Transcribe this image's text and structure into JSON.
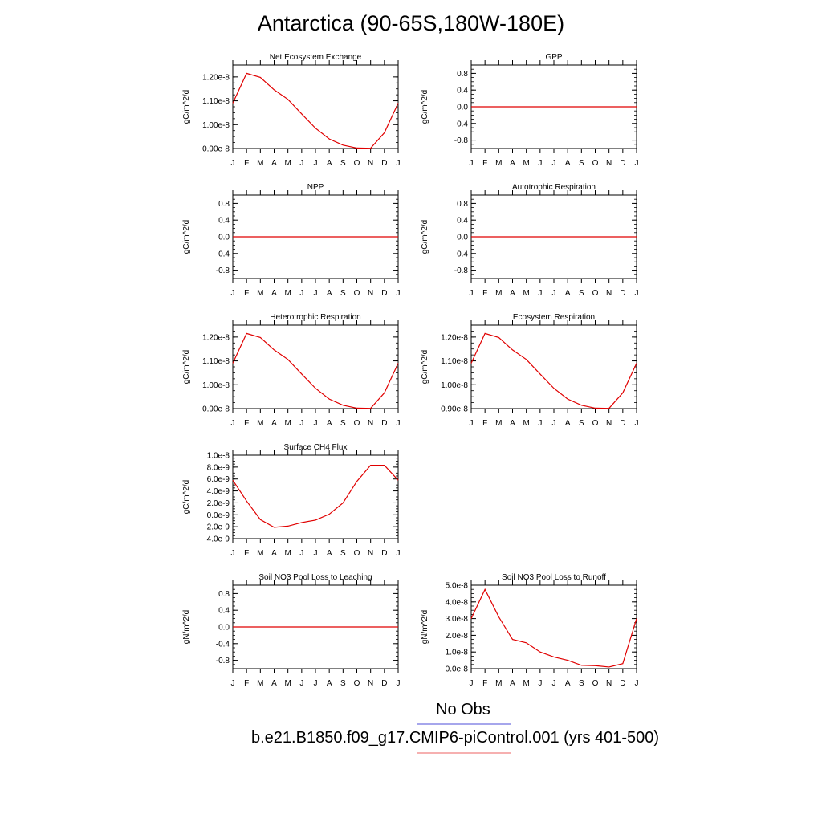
{
  "title": "Antarctica (90-65S,180W-180E)",
  "months": [
    "J",
    "F",
    "M",
    "A",
    "M",
    "J",
    "J",
    "A",
    "S",
    "O",
    "N",
    "D",
    "J"
  ],
  "legend": {
    "obs_label": "No Obs",
    "obs_color": "#7070e0",
    "model_label": "b.e21.B1850.f09_g17.CMIP6-piControl.001 (yrs 401-500)",
    "model_color": "#f08080"
  },
  "line_color": "#e00000",
  "chart_data": [
    {
      "type": "line",
      "title": "Net Ecosystem Exchange",
      "ylabel": "gC/m^2/d",
      "ylim": [
        9e-09,
        1.25e-08
      ],
      "yticks": [
        9e-09,
        1e-08,
        1.1e-08,
        1.2e-08
      ],
      "yticklabels": [
        "0.90e-8",
        "1.00e-8",
        "1.10e-8",
        "1.20e-8"
      ],
      "categories": [
        "J",
        "F",
        "M",
        "A",
        "M",
        "J",
        "J",
        "A",
        "S",
        "O",
        "N",
        "D",
        "J"
      ],
      "values": [
        1.09e-08,
        1.215e-08,
        1.198e-08,
        1.146e-08,
        1.106e-08,
        1.045e-08,
        9.85e-09,
        9.4e-09,
        9.14e-09,
        9.02e-09,
        9.01e-09,
        9.66e-09,
        1.09e-08
      ]
    },
    {
      "type": "line",
      "title": "GPP",
      "ylabel": "gC/m^2/d",
      "ylim": [
        -1,
        1
      ],
      "yticks": [
        -0.8,
        -0.4,
        0,
        0.4,
        0.8
      ],
      "yticklabels": [
        "-0.8",
        "-0.4",
        "0.0",
        "0.4",
        "0.8"
      ],
      "categories": [
        "J",
        "F",
        "M",
        "A",
        "M",
        "J",
        "J",
        "A",
        "S",
        "O",
        "N",
        "D",
        "J"
      ],
      "values": [
        0,
        0,
        0,
        0,
        0,
        0,
        0,
        0,
        0,
        0,
        0,
        0,
        0
      ]
    },
    {
      "type": "line",
      "title": "NPP",
      "ylabel": "gC/m^2/d",
      "ylim": [
        -1,
        1
      ],
      "yticks": [
        -0.8,
        -0.4,
        0,
        0.4,
        0.8
      ],
      "yticklabels": [
        "-0.8",
        "-0.4",
        "0.0",
        "0.4",
        "0.8"
      ],
      "categories": [
        "J",
        "F",
        "M",
        "A",
        "M",
        "J",
        "J",
        "A",
        "S",
        "O",
        "N",
        "D",
        "J"
      ],
      "values": [
        0,
        0,
        0,
        0,
        0,
        0,
        0,
        0,
        0,
        0,
        0,
        0,
        0
      ]
    },
    {
      "type": "line",
      "title": "Autotrophic Respiration",
      "ylabel": "gC/m^2/d",
      "ylim": [
        -1,
        1
      ],
      "yticks": [
        -0.8,
        -0.4,
        0,
        0.4,
        0.8
      ],
      "yticklabels": [
        "-0.8",
        "-0.4",
        "0.0",
        "0.4",
        "0.8"
      ],
      "categories": [
        "J",
        "F",
        "M",
        "A",
        "M",
        "J",
        "J",
        "A",
        "S",
        "O",
        "N",
        "D",
        "J"
      ],
      "values": [
        0,
        0,
        0,
        0,
        0,
        0,
        0,
        0,
        0,
        0,
        0,
        0,
        0
      ]
    },
    {
      "type": "line",
      "title": "Heterotrophic Respiration",
      "ylabel": "gC/m^2/d",
      "ylim": [
        9e-09,
        1.25e-08
      ],
      "yticks": [
        9e-09,
        1e-08,
        1.1e-08,
        1.2e-08
      ],
      "yticklabels": [
        "0.90e-8",
        "1.00e-8",
        "1.10e-8",
        "1.20e-8"
      ],
      "categories": [
        "J",
        "F",
        "M",
        "A",
        "M",
        "J",
        "J",
        "A",
        "S",
        "O",
        "N",
        "D",
        "J"
      ],
      "values": [
        1.09e-08,
        1.215e-08,
        1.198e-08,
        1.146e-08,
        1.106e-08,
        1.045e-08,
        9.85e-09,
        9.4e-09,
        9.14e-09,
        9.02e-09,
        9.01e-09,
        9.66e-09,
        1.09e-08
      ]
    },
    {
      "type": "line",
      "title": "Ecosystem Respiration",
      "ylabel": "gC/m^2/d",
      "ylim": [
        9e-09,
        1.25e-08
      ],
      "yticks": [
        9e-09,
        1e-08,
        1.1e-08,
        1.2e-08
      ],
      "yticklabels": [
        "0.90e-8",
        "1.00e-8",
        "1.10e-8",
        "1.20e-8"
      ],
      "categories": [
        "J",
        "F",
        "M",
        "A",
        "M",
        "J",
        "J",
        "A",
        "S",
        "O",
        "N",
        "D",
        "J"
      ],
      "values": [
        1.09e-08,
        1.215e-08,
        1.198e-08,
        1.146e-08,
        1.106e-08,
        1.045e-08,
        9.85e-09,
        9.4e-09,
        9.14e-09,
        9.02e-09,
        9.01e-09,
        9.66e-09,
        1.09e-08
      ]
    },
    {
      "type": "line",
      "title": "Surface CH4 Flux",
      "ylabel": "gC/m^2/d",
      "ylim": [
        -4e-09,
        1e-08
      ],
      "yticks": [
        -4e-09,
        -2e-09,
        0,
        2e-09,
        4e-09,
        6e-09,
        8e-09,
        1e-08
      ],
      "yticklabels": [
        "-4.0e-9",
        "-2.0e-9",
        "0.0e-9",
        "2.0e-9",
        "4.0e-9",
        "6.0e-9",
        "8.0e-9",
        "1.0e-8"
      ],
      "categories": [
        "J",
        "F",
        "M",
        "A",
        "M",
        "J",
        "J",
        "A",
        "S",
        "O",
        "N",
        "D",
        "J"
      ],
      "values": [
        5.8e-09,
        2.3e-09,
        -8e-10,
        -2.1e-09,
        -1.9e-09,
        -1.3e-09,
        -9e-10,
        1e-10,
        2e-09,
        5.6e-09,
        8.3e-09,
        8.3e-09,
        5.8e-09
      ]
    },
    {
      "type": "line",
      "title": "Soil NO3 Pool Loss to Leaching",
      "ylabel": "gN/m^2/d",
      "ylim": [
        -1,
        1
      ],
      "yticks": [
        -0.8,
        -0.4,
        0,
        0.4,
        0.8
      ],
      "yticklabels": [
        "-0.8",
        "-0.4",
        "0.0",
        "0.4",
        "0.8"
      ],
      "categories": [
        "J",
        "F",
        "M",
        "A",
        "M",
        "J",
        "J",
        "A",
        "S",
        "O",
        "N",
        "D",
        "J"
      ],
      "values": [
        0,
        0,
        0,
        0,
        0,
        0,
        0,
        0,
        0,
        0,
        0,
        0,
        0
      ]
    },
    {
      "type": "line",
      "title": "Soil NO3 Pool Loss to Runoff",
      "ylabel": "gN/m^2/d",
      "ylim": [
        0,
        5e-08
      ],
      "yticks": [
        0,
        1e-08,
        2e-08,
        3e-08,
        4e-08,
        5e-08
      ],
      "yticklabels": [
        "0.0e-8",
        "1.0e-8",
        "2.0e-8",
        "3.0e-8",
        "4.0e-8",
        "5.0e-8"
      ],
      "categories": [
        "J",
        "F",
        "M",
        "A",
        "M",
        "J",
        "J",
        "A",
        "S",
        "O",
        "N",
        "D",
        "J"
      ],
      "values": [
        3e-08,
        4.75e-08,
        3.1e-08,
        1.75e-08,
        1.55e-08,
        1e-08,
        7e-09,
        5e-09,
        2e-09,
        1.8e-09,
        1e-09,
        3e-09,
        3e-08
      ]
    }
  ]
}
